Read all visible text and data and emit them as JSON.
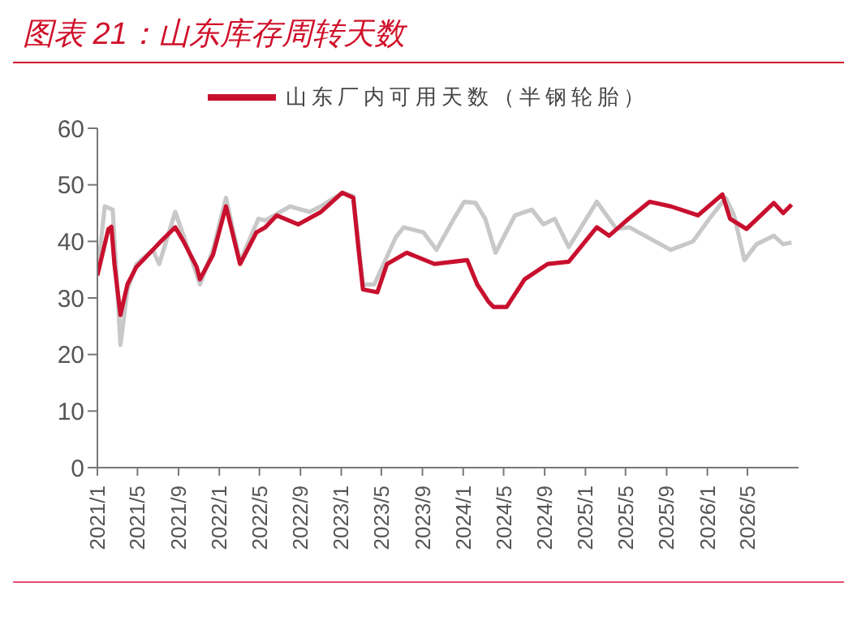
{
  "chart_data": {
    "type": "line",
    "title": "图表 21：山东库存周转天数",
    "legend": "top",
    "grid": false,
    "marker": "none",
    "line_style": "solid",
    "ylim": [
      0,
      60
    ],
    "yticks": [
      0,
      10,
      20,
      30,
      40,
      50,
      60
    ],
    "xlim": [
      "2021-01-01",
      "2026-10-01"
    ],
    "xticks": [
      {
        "value": "2021-01-01",
        "label": "2021/1"
      },
      {
        "value": "2021-05-01",
        "label": "2021/5"
      },
      {
        "value": "2021-09-01",
        "label": "2021/9"
      },
      {
        "value": "2022-01-01",
        "label": "2022/1"
      },
      {
        "value": "2022-05-01",
        "label": "2022/5"
      },
      {
        "value": "2022-09-01",
        "label": "2022/9"
      },
      {
        "value": "2023-01-01",
        "label": "2023/1"
      },
      {
        "value": "2023-05-01",
        "label": "2023/5"
      },
      {
        "value": "2023-09-01",
        "label": "2023/9"
      },
      {
        "value": "2024-01-01",
        "label": "2024/1"
      },
      {
        "value": "2024-05-01",
        "label": "2024/5"
      },
      {
        "value": "2024-09-01",
        "label": "2024/9"
      },
      {
        "value": "2025-01-01",
        "label": "2025/1"
      },
      {
        "value": "2025-05-01",
        "label": "2025/5"
      },
      {
        "value": "2025-09-01",
        "label": "2025/9"
      },
      {
        "value": "2026-01-01",
        "label": "2026/1"
      },
      {
        "value": "2026-05-01",
        "label": "2026/5"
      }
    ],
    "series": [
      {
        "color": "#c8c8c8",
        "x": [
          "2021-01-01",
          "2021-01-23",
          "2021-02-16",
          "2021-03-11",
          "2021-04-01",
          "2021-04-28",
          "2021-06-16",
          "2021-07-05",
          "2021-08-22",
          "2021-09-16",
          "2021-11-04",
          "2021-12-13",
          "2022-01-21",
          "2022-03-04",
          "2022-04-28",
          "2022-05-19",
          "2022-08-01",
          "2022-09-28",
          "2022-11-01",
          "2023-01-04",
          "2023-02-06",
          "2023-03-07",
          "2023-04-10",
          "2023-06-13",
          "2023-07-07",
          "2023-09-04",
          "2023-10-13",
          "2023-12-10",
          "2024-01-04",
          "2024-02-07",
          "2024-03-07",
          "2024-04-07",
          "2024-06-04",
          "2024-07-25",
          "2024-08-28",
          "2024-10-01",
          "2024-11-12",
          "2025-02-04",
          "2025-04-04",
          "2025-05-13",
          "2025-08-13",
          "2025-09-13",
          "2025-11-19",
          "2026-01-07",
          "2026-02-25",
          "2026-03-22",
          "2026-04-22",
          "2026-05-28",
          "2026-07-19",
          "2026-08-16",
          "2026-09-10"
        ],
        "values": [
          34,
          46.2,
          45.6,
          21.7,
          31.5,
          36,
          38.5,
          36,
          45.2,
          41,
          32.4,
          38.5,
          47.7,
          36.4,
          44,
          43.7,
          46.2,
          45.2,
          46.2,
          48.6,
          48,
          32.4,
          32.4,
          40.7,
          42.5,
          41.6,
          38.5,
          44.6,
          47,
          46.8,
          44,
          38,
          44.6,
          45.6,
          43,
          44,
          39,
          47,
          42.2,
          42.5,
          39.5,
          38.5,
          40,
          44,
          47.7,
          44.6,
          36.7,
          39.5,
          41,
          39.5,
          39.8
        ]
      },
      {
        "name": "山东厂内可用天数（半钢轮胎）",
        "color": "#c8102e",
        "x": [
          "2021-01-01",
          "2021-02-03",
          "2021-02-12",
          "2021-02-21",
          "2021-03-11",
          "2021-04-01",
          "2021-04-28",
          "2021-06-16",
          "2021-07-10",
          "2021-08-22",
          "2021-09-16",
          "2021-10-25",
          "2021-11-04",
          "2021-12-13",
          "2022-01-21",
          "2022-03-04",
          "2022-04-22",
          "2022-05-19",
          "2022-06-22",
          "2022-08-25",
          "2022-11-01",
          "2023-01-04",
          "2023-02-06",
          "2023-02-22",
          "2023-03-07",
          "2023-04-19",
          "2023-05-18",
          "2023-07-16",
          "2023-10-07",
          "2024-01-13",
          "2024-02-12",
          "2024-03-16",
          "2024-04-01",
          "2024-05-10",
          "2024-07-03",
          "2024-09-10",
          "2024-11-12",
          "2025-02-04",
          "2025-03-13",
          "2025-05-10",
          "2025-07-12",
          "2025-09-13",
          "2025-12-04",
          "2026-02-15",
          "2026-03-10",
          "2026-04-28",
          "2026-07-19",
          "2026-08-16",
          "2026-09-10"
        ],
        "values": [
          34,
          42.2,
          42.6,
          36,
          27,
          32.4,
          35.5,
          38.5,
          40,
          42.5,
          40,
          35.5,
          33.3,
          37.6,
          46.2,
          36,
          41.6,
          42.5,
          44.6,
          43,
          45.2,
          48.6,
          47.7,
          38.5,
          31.5,
          31,
          36,
          38,
          36,
          36.7,
          32.4,
          29.4,
          28.4,
          28.4,
          33.3,
          36,
          36.4,
          42.5,
          41,
          44,
          47,
          46.2,
          44.6,
          48.3,
          44,
          42.2,
          46.8,
          45,
          46.5
        ]
      }
    ]
  }
}
